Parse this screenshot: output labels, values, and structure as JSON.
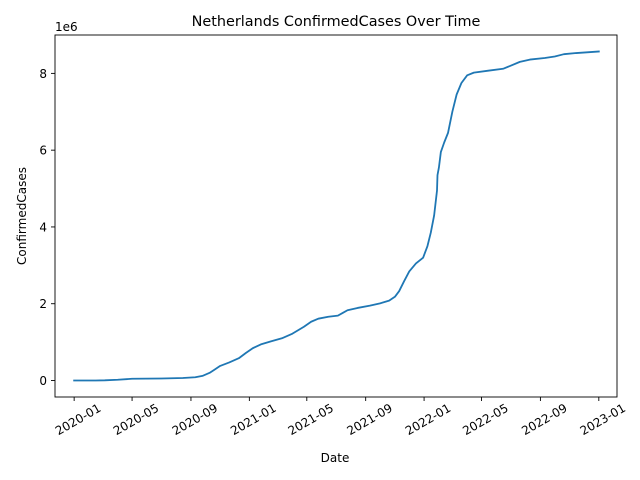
{
  "chart_data": {
    "type": "line",
    "title": "Netherlands  ConfirmedCases Over Time",
    "xlabel": "Date",
    "ylabel": "ConfirmedCases",
    "y_offset_label": "1e6",
    "xlim": [
      "2019-11-22",
      "2023-02-08"
    ],
    "ylim": [
      -0.43,
      9.0
    ],
    "x_ticks": [
      {
        "date": "2020-01-01",
        "label": "2020-01"
      },
      {
        "date": "2020-05-01",
        "label": "2020-05"
      },
      {
        "date": "2020-09-01",
        "label": "2020-09"
      },
      {
        "date": "2021-01-01",
        "label": "2021-01"
      },
      {
        "date": "2021-05-01",
        "label": "2021-05"
      },
      {
        "date": "2021-09-01",
        "label": "2021-09"
      },
      {
        "date": "2022-01-01",
        "label": "2022-01"
      },
      {
        "date": "2022-05-01",
        "label": "2022-05"
      },
      {
        "date": "2022-09-01",
        "label": "2022-09"
      },
      {
        "date": "2023-01-01",
        "label": "2023-01"
      }
    ],
    "y_ticks": [
      {
        "value": 0,
        "label": "0"
      },
      {
        "value": 2,
        "label": "2"
      },
      {
        "value": 4,
        "label": "4"
      },
      {
        "value": 6,
        "label": "6"
      },
      {
        "value": 8,
        "label": "8"
      }
    ],
    "grid": false,
    "legend": "none",
    "series": [
      {
        "color": "#1f77b4",
        "points": [
          [
            "2020-01-01",
            0
          ],
          [
            "2020-02-15",
            0
          ],
          [
            "2020-03-05",
            0.005
          ],
          [
            "2020-04-01",
            0.02
          ],
          [
            "2020-05-01",
            0.045
          ],
          [
            "2020-07-01",
            0.052
          ],
          [
            "2020-08-15",
            0.065
          ],
          [
            "2020-09-10",
            0.085
          ],
          [
            "2020-09-25",
            0.12
          ],
          [
            "2020-10-10",
            0.2
          ],
          [
            "2020-10-20",
            0.28
          ],
          [
            "2020-11-01",
            0.38
          ],
          [
            "2020-11-20",
            0.47
          ],
          [
            "2020-12-10",
            0.58
          ],
          [
            "2020-12-25",
            0.72
          ],
          [
            "2021-01-08",
            0.84
          ],
          [
            "2021-01-25",
            0.94
          ],
          [
            "2021-02-15",
            1.02
          ],
          [
            "2021-03-10",
            1.1
          ],
          [
            "2021-04-01",
            1.22
          ],
          [
            "2021-04-25",
            1.4
          ],
          [
            "2021-05-10",
            1.53
          ],
          [
            "2021-05-25",
            1.61
          ],
          [
            "2021-06-15",
            1.66
          ],
          [
            "2021-07-05",
            1.69
          ],
          [
            "2021-07-15",
            1.76
          ],
          [
            "2021-07-25",
            1.83
          ],
          [
            "2021-08-15",
            1.89
          ],
          [
            "2021-09-10",
            1.95
          ],
          [
            "2021-10-01",
            2.01
          ],
          [
            "2021-10-20",
            2.08
          ],
          [
            "2021-11-01",
            2.18
          ],
          [
            "2021-11-10",
            2.33
          ],
          [
            "2021-11-20",
            2.58
          ],
          [
            "2021-12-01",
            2.84
          ],
          [
            "2021-12-15",
            3.05
          ],
          [
            "2021-12-30",
            3.2
          ],
          [
            "2022-01-08",
            3.5
          ],
          [
            "2022-01-15",
            3.85
          ],
          [
            "2022-01-22",
            4.3
          ],
          [
            "2022-01-28",
            4.95
          ],
          [
            "2022-01-29",
            5.35
          ],
          [
            "2022-02-01",
            5.55
          ],
          [
            "2022-02-05",
            5.95
          ],
          [
            "2022-02-12",
            6.2
          ],
          [
            "2022-02-20",
            6.45
          ],
          [
            "2022-03-01",
            7.0
          ],
          [
            "2022-03-10",
            7.45
          ],
          [
            "2022-03-20",
            7.75
          ],
          [
            "2022-04-01",
            7.95
          ],
          [
            "2022-04-15",
            8.02
          ],
          [
            "2022-05-15",
            8.07
          ],
          [
            "2022-06-15",
            8.12
          ],
          [
            "2022-07-01",
            8.2
          ],
          [
            "2022-07-20",
            8.3
          ],
          [
            "2022-08-10",
            8.36
          ],
          [
            "2022-09-10",
            8.4
          ],
          [
            "2022-10-01",
            8.44
          ],
          [
            "2022-10-20",
            8.5
          ],
          [
            "2022-11-15",
            8.53
          ],
          [
            "2023-01-01",
            8.57
          ]
        ]
      }
    ]
  }
}
